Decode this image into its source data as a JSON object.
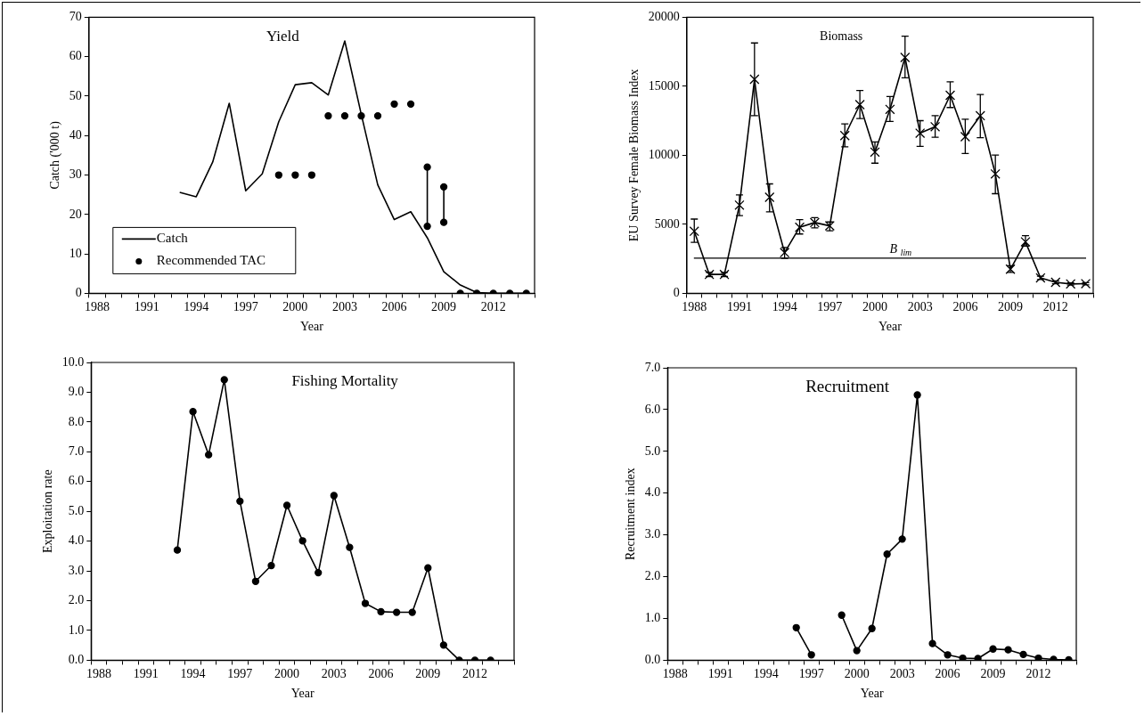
{
  "chart_data": [
    {
      "type": "line",
      "title": "Yield",
      "xlabel": "Year",
      "ylabel": "Catch ('000 t)",
      "legend": "bottom left",
      "marker": "none",
      "xlim": [
        1987.5,
        2014.5
      ],
      "ylim": [
        0,
        70
      ],
      "yticks": [
        0,
        10,
        20,
        30,
        40,
        50,
        60,
        70
      ],
      "xticks": [
        {
          "value": 1987.5,
          "label": null
        },
        1988,
        {
          "value": 1988.5,
          "label": null
        },
        {
          "value": 1989.5,
          "label": null
        },
        {
          "value": 1990.5,
          "label": null
        },
        1991,
        {
          "value": 1991.5,
          "label": null
        },
        {
          "value": 1992.5,
          "label": null
        },
        {
          "value": 1993.5,
          "label": null
        },
        1994,
        {
          "value": 1994.5,
          "label": null
        },
        {
          "value": 1995.5,
          "label": null
        },
        {
          "value": 1996.5,
          "label": null
        },
        1997,
        {
          "value": 1997.5,
          "label": null
        },
        {
          "value": 1998.5,
          "label": null
        },
        {
          "value": 1999.5,
          "label": null
        },
        2000,
        {
          "value": 2000.5,
          "label": null
        },
        {
          "value": 2001.5,
          "label": null
        },
        {
          "value": 2002.5,
          "label": null
        },
        2003,
        {
          "value": 2003.5,
          "label": null
        },
        {
          "value": 2004.5,
          "label": null
        },
        {
          "value": 2005.5,
          "label": null
        },
        2006,
        {
          "value": 2006.5,
          "label": null
        },
        {
          "value": 2007.5,
          "label": null
        },
        {
          "value": 2008.5,
          "label": null
        },
        2009,
        {
          "value": 2009.5,
          "label": null
        },
        {
          "value": 2010.5,
          "label": null
        },
        {
          "value": 2011.5,
          "label": null
        },
        2012,
        {
          "value": 2012.5,
          "label": null
        },
        {
          "value": 2013.5,
          "label": null
        },
        {
          "value": 2014.5,
          "label": null
        }
      ],
      "series": [
        {
          "name": "Catch",
          "color": "#000000",
          "x": [
            1993,
            1994,
            1995,
            1996,
            1997,
            1998,
            1999,
            2000,
            2001,
            2002,
            2003,
            2004,
            2005,
            2006,
            2007,
            2008,
            2009,
            2010,
            2011,
            2012,
            2013,
            2014
          ],
          "values": [
            25.6,
            24.5,
            33.3,
            48.2,
            26.0,
            30.3,
            43.5,
            52.9,
            53.4,
            50.3,
            64.0,
            45.4,
            27.5,
            18.7,
            20.7,
            14.1,
            5.5,
            2.1,
            0.2,
            0,
            0,
            0
          ]
        },
        {
          "name": "Recommended TAC",
          "type": "scatter",
          "marker": "circle",
          "color": "#000000",
          "x": [
            1999,
            2000,
            2001,
            2002,
            2003,
            2004,
            2005,
            2006,
            2007,
            2008,
            2008,
            2009,
            2009,
            2010,
            2011,
            2012,
            2013,
            2014
          ],
          "values": [
            30,
            30,
            30,
            45,
            45,
            45,
            45,
            48,
            48,
            32,
            17,
            27,
            18,
            0,
            0,
            0,
            0,
            0
          ]
        },
        {
          "type": "line",
          "color": "#000000",
          "x": [
            2008,
            2008
          ],
          "values": [
            17,
            32
          ]
        },
        {
          "type": "line",
          "color": "#000000",
          "x": [
            2009,
            2009
          ],
          "values": [
            18,
            27
          ]
        }
      ]
    },
    {
      "type": "line",
      "title": "Biomass",
      "xlabel": "Year",
      "ylabel": "EU Survey Female Biomass Index",
      "marker": "cross",
      "xlim": [
        1987.5,
        2014.5
      ],
      "ylim": [
        0,
        20000
      ],
      "yticks": [
        0,
        5000,
        10000,
        15000,
        20000
      ],
      "xticks": [
        {
          "value": 1987.5,
          "label": null
        },
        1988,
        {
          "value": 1988.5,
          "label": null
        },
        {
          "value": 1989.5,
          "label": null
        },
        {
          "value": 1990.5,
          "label": null
        },
        1991,
        {
          "value": 1991.5,
          "label": null
        },
        {
          "value": 1992.5,
          "label": null
        },
        {
          "value": 1993.5,
          "label": null
        },
        1994,
        {
          "value": 1994.5,
          "label": null
        },
        {
          "value": 1995.5,
          "label": null
        },
        {
          "value": 1996.5,
          "label": null
        },
        1997,
        {
          "value": 1997.5,
          "label": null
        },
        {
          "value": 1998.5,
          "label": null
        },
        {
          "value": 1999.5,
          "label": null
        },
        2000,
        {
          "value": 2000.5,
          "label": null
        },
        {
          "value": 2001.5,
          "label": null
        },
        {
          "value": 2002.5,
          "label": null
        },
        2003,
        {
          "value": 2003.5,
          "label": null
        },
        {
          "value": 2004.5,
          "label": null
        },
        {
          "value": 2005.5,
          "label": null
        },
        2006,
        {
          "value": 2006.5,
          "label": null
        },
        {
          "value": 2007.5,
          "label": null
        },
        {
          "value": 2008.5,
          "label": null
        },
        2009,
        {
          "value": 2009.5,
          "label": null
        },
        {
          "value": 2010.5,
          "label": null
        },
        {
          "value": 2011.5,
          "label": null
        },
        2012,
        {
          "value": 2012.5,
          "label": null
        },
        {
          "value": 2013.5,
          "label": null
        },
        {
          "value": 2014.5,
          "label": null
        }
      ],
      "ref_lines": [
        {
          "axis": "y",
          "value": 2550,
          "label": "B$_{lim}$"
        }
      ],
      "series": [
        {
          "color": "#000000",
          "x": [
            1988,
            1989,
            1990,
            1991,
            1992,
            1993,
            1994,
            1995,
            1996,
            1997,
            1998,
            1999,
            2000,
            2001,
            2002,
            2003,
            2004,
            2005,
            2006,
            2007,
            2008,
            2009,
            2010,
            2011,
            2012,
            2013,
            2014
          ],
          "values": [
            4500,
            1370,
            1370,
            6390,
            15510,
            6960,
            2950,
            4790,
            5130,
            4890,
            11430,
            13670,
            10230,
            13330,
            17090,
            11600,
            12070,
            14350,
            11350,
            12870,
            8650,
            1750,
            3730,
            1120,
            800,
            680,
            700
          ],
          "errors": [
            [
              3690,
              5380
            ],
            [
              1220,
              1520
            ],
            [
              1220,
              1520
            ],
            [
              5630,
              7130
            ],
            [
              12870,
              18140
            ],
            [
              5910,
              7930
            ],
            [
              2530,
              3330
            ],
            [
              4300,
              5340
            ],
            [
              4750,
              5490
            ],
            [
              4540,
              5170
            ],
            [
              10610,
              12280
            ],
            [
              12660,
              14700
            ],
            [
              9430,
              10970
            ],
            [
              12450,
              14260
            ],
            [
              15610,
              18630
            ],
            [
              10650,
              12510
            ],
            [
              11310,
              12870
            ],
            [
              13460,
              15320
            ],
            [
              10130,
              12620
            ],
            [
              11270,
              14410
            ],
            [
              7220,
              10020
            ],
            [
              1520,
              2000
            ],
            [
              3420,
              4180
            ],
            [
              1000,
              1240
            ],
            [
              700,
              900
            ],
            [
              600,
              760
            ],
            [
              620,
              780
            ]
          ]
        }
      ]
    },
    {
      "type": "line",
      "title": "Fishing Mortality",
      "xlabel": "Year",
      "ylabel": "Exploitation rate",
      "marker": "circle",
      "xlim": [
        1987.5,
        2014.5
      ],
      "ylim": [
        0,
        10
      ],
      "yticks": [
        {
          "value": 0,
          "label": "0.0"
        },
        {
          "value": 1,
          "label": "1.0"
        },
        {
          "value": 2,
          "label": "2.0"
        },
        {
          "value": 3,
          "label": "3.0"
        },
        {
          "value": 4,
          "label": "4.0"
        },
        {
          "value": 5,
          "label": "5.0"
        },
        {
          "value": 6,
          "label": "6.0"
        },
        {
          "value": 7,
          "label": "7.0"
        },
        {
          "value": 8,
          "label": "8.0"
        },
        {
          "value": 9,
          "label": "9.0"
        },
        {
          "value": 10,
          "label": "10.0"
        }
      ],
      "xticks": [
        {
          "value": 1987.5,
          "label": null
        },
        1988,
        {
          "value": 1988.5,
          "label": null
        },
        {
          "value": 1989.5,
          "label": null
        },
        {
          "value": 1990.5,
          "label": null
        },
        1991,
        {
          "value": 1991.5,
          "label": null
        },
        {
          "value": 1992.5,
          "label": null
        },
        {
          "value": 1993.5,
          "label": null
        },
        1994,
        {
          "value": 1994.5,
          "label": null
        },
        {
          "value": 1995.5,
          "label": null
        },
        {
          "value": 1996.5,
          "label": null
        },
        1997,
        {
          "value": 1997.5,
          "label": null
        },
        {
          "value": 1998.5,
          "label": null
        },
        {
          "value": 1999.5,
          "label": null
        },
        2000,
        {
          "value": 2000.5,
          "label": null
        },
        {
          "value": 2001.5,
          "label": null
        },
        {
          "value": 2002.5,
          "label": null
        },
        2003,
        {
          "value": 2003.5,
          "label": null
        },
        {
          "value": 2004.5,
          "label": null
        },
        {
          "value": 2005.5,
          "label": null
        },
        2006,
        {
          "value": 2006.5,
          "label": null
        },
        {
          "value": 2007.5,
          "label": null
        },
        {
          "value": 2008.5,
          "label": null
        },
        2009,
        {
          "value": 2009.5,
          "label": null
        },
        {
          "value": 2010.5,
          "label": null
        },
        {
          "value": 2011.5,
          "label": null
        },
        2012,
        {
          "value": 2012.5,
          "label": null
        },
        {
          "value": 2013.5,
          "label": null
        },
        {
          "value": 2014.5,
          "label": null
        }
      ],
      "series": [
        {
          "color": "#000000",
          "x": [
            1993,
            1994,
            1995,
            1996,
            1997,
            1998,
            1999,
            2000,
            2001,
            2002,
            2003,
            2004,
            2005,
            2006,
            2007,
            2008,
            2009,
            2010,
            2011,
            2012,
            2013
          ],
          "values": [
            3.7,
            8.35,
            6.9,
            9.42,
            5.34,
            2.65,
            3.18,
            5.2,
            4.01,
            2.94,
            5.53,
            3.79,
            1.91,
            1.63,
            1.61,
            1.61,
            3.1,
            0.51,
            0,
            0,
            0
          ]
        }
      ]
    },
    {
      "type": "line",
      "title": "Recruitment",
      "xlabel": "Year",
      "ylabel": "Recruitment index",
      "marker": "circle",
      "xlim": [
        1987.5,
        2014.5
      ],
      "ylim": [
        0,
        7
      ],
      "yticks": [
        {
          "value": 0,
          "label": "0.0"
        },
        {
          "value": 1,
          "label": "1.0"
        },
        {
          "value": 2,
          "label": "2.0"
        },
        {
          "value": 3,
          "label": "3.0"
        },
        {
          "value": 4,
          "label": "4.0"
        },
        {
          "value": 5,
          "label": "5.0"
        },
        {
          "value": 6,
          "label": "6.0"
        },
        {
          "value": 7,
          "label": "7.0"
        }
      ],
      "xticks": [
        {
          "value": 1987.5,
          "label": null
        },
        1988,
        {
          "value": 1988.5,
          "label": null
        },
        {
          "value": 1989.5,
          "label": null
        },
        {
          "value": 1990.5,
          "label": null
        },
        1991,
        {
          "value": 1991.5,
          "label": null
        },
        {
          "value": 1992.5,
          "label": null
        },
        {
          "value": 1993.5,
          "label": null
        },
        1994,
        {
          "value": 1994.5,
          "label": null
        },
        {
          "value": 1995.5,
          "label": null
        },
        {
          "value": 1996.5,
          "label": null
        },
        1997,
        {
          "value": 1997.5,
          "label": null
        },
        {
          "value": 1998.5,
          "label": null
        },
        {
          "value": 1999.5,
          "label": null
        },
        2000,
        {
          "value": 2000.5,
          "label": null
        },
        {
          "value": 2001.5,
          "label": null
        },
        {
          "value": 2002.5,
          "label": null
        },
        2003,
        {
          "value": 2003.5,
          "label": null
        },
        {
          "value": 2004.5,
          "label": null
        },
        {
          "value": 2005.5,
          "label": null
        },
        2006,
        {
          "value": 2006.5,
          "label": null
        },
        {
          "value": 2007.5,
          "label": null
        },
        {
          "value": 2008.5,
          "label": null
        },
        2009,
        {
          "value": 2009.5,
          "label": null
        },
        {
          "value": 2010.5,
          "label": null
        },
        {
          "value": 2011.5,
          "label": null
        },
        2012,
        {
          "value": 2012.5,
          "label": null
        },
        {
          "value": 2013.5,
          "label": null
        },
        {
          "value": 2014.5,
          "label": null
        }
      ],
      "series": [
        {
          "color": "#000000",
          "x": [
            1996,
            1997,
            1998,
            1999,
            2000,
            2001,
            2002,
            2003,
            2004,
            2005,
            2006,
            2007,
            2008,
            2009,
            2010,
            2011,
            2012,
            2013,
            2014
          ],
          "values": [
            0.78,
            0.13,
            null,
            1.08,
            0.23,
            0.76,
            2.54,
            2.9,
            6.35,
            0.4,
            0.13,
            0.05,
            0.04,
            0.27,
            0.25,
            0.14,
            0.05,
            0.02,
            0.01
          ]
        }
      ]
    }
  ]
}
